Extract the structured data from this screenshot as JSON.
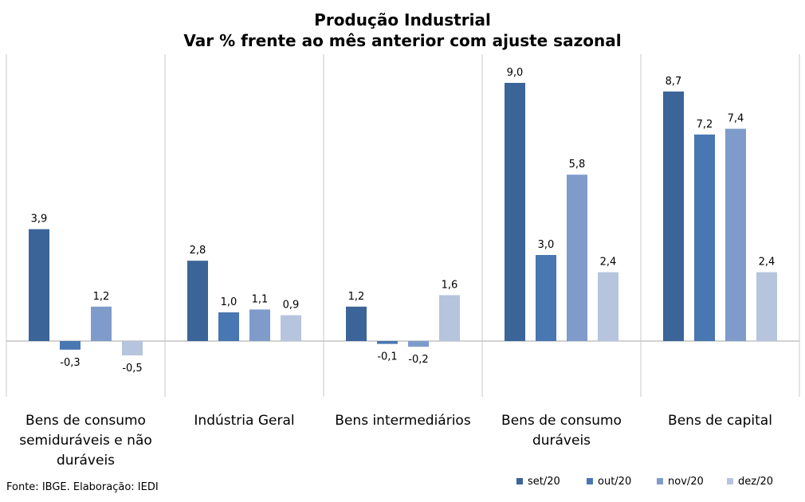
{
  "chart_data": {
    "type": "bar",
    "title": "Produção Industrial",
    "subtitle": "Var % frente ao mês anterior com ajuste sazonal",
    "categories": [
      [
        "Bens de consumo",
        "semiduráveis e não",
        "duráveis"
      ],
      [
        "Indústria Geral"
      ],
      [
        "Bens intermediários"
      ],
      [
        "Bens de consumo",
        "duráveis"
      ],
      [
        "Bens de capital"
      ]
    ],
    "series": [
      {
        "name": "set/20",
        "color": "#3b6498",
        "values": [
          3.9,
          2.8,
          1.2,
          9.0,
          8.7
        ],
        "labels": [
          "3,9",
          "2,8",
          "1,2",
          "9,0",
          "8,7"
        ]
      },
      {
        "name": "out/20",
        "color": "#4877b2",
        "values": [
          -0.3,
          1.0,
          -0.1,
          3.0,
          7.2
        ],
        "labels": [
          "-0,3",
          "1,0",
          "-0,1",
          "3,0",
          "7,2"
        ]
      },
      {
        "name": "nov/20",
        "color": "#7f9bc9",
        "values": [
          1.2,
          1.1,
          -0.2,
          5.8,
          7.4
        ],
        "labels": [
          "1,2",
          "1,1",
          "-0,2",
          "5,8",
          "7,4"
        ]
      },
      {
        "name": "dez/20",
        "color": "#b6c4de",
        "values": [
          -0.5,
          0.9,
          1.6,
          2.4,
          2.4
        ],
        "labels": [
          "-0,5",
          "0,9",
          "1,6",
          "2,4",
          "2,4"
        ]
      }
    ],
    "legend_position": "bottom-right"
  },
  "source": "Fonte: IBGE. Elaboração: IEDI"
}
